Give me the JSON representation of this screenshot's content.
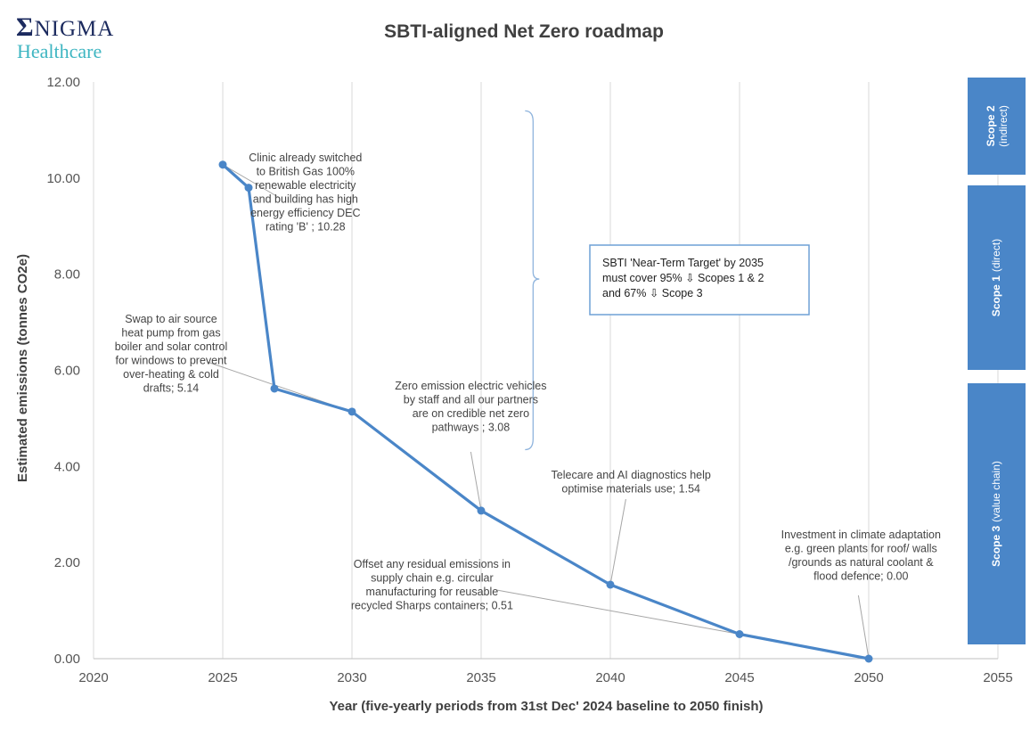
{
  "logo": {
    "line1_sigma": "Σ",
    "line1_rest": "NIGMA",
    "line2": "Healthcare"
  },
  "chart_data": {
    "type": "line",
    "title": "SBTI-aligned Net Zero roadmap",
    "xlabel": "Year (five-yearly periods from 31st Dec' 2024 baseline to 2050 finish)",
    "ylabel": "Estimated emissions (tonnes CO2e)",
    "xlim": [
      2020,
      2055
    ],
    "ylim": [
      0,
      12
    ],
    "x_ticks": [
      "2020",
      "2025",
      "2030",
      "2035",
      "2040",
      "2045",
      "2050",
      "2055"
    ],
    "y_ticks": [
      "0.00",
      "2.00",
      "4.00",
      "6.00",
      "8.00",
      "10.00",
      "12.00"
    ],
    "grid": "vertical",
    "line_color": "#4a86c8",
    "series": [
      {
        "x": [
          2025,
          2026,
          2027,
          2030,
          2035,
          2040,
          2045,
          2050
        ],
        "y": [
          10.28,
          9.8,
          5.62,
          5.14,
          3.08,
          1.54,
          0.51,
          0.0
        ]
      }
    ],
    "annotations": [
      {
        "lines": [
          "Clinic already switched",
          "to British Gas 100%",
          "renewable electricity",
          "and building has high",
          "energy efficiency DEC",
          "rating 'B' ; 10.28"
        ],
        "point": [
          2025,
          10.28
        ]
      },
      {
        "lines": [
          "Swap to air source",
          "heat pump from gas",
          "boiler and solar control",
          "for windows to prevent",
          "over-heating & cold",
          "drafts; 5.14"
        ],
        "point": [
          2030,
          5.14
        ]
      },
      {
        "lines": [
          "Zero emission electric vehicles",
          "by staff and all our partners",
          "are on credible net zero",
          "pathways ; 3.08"
        ],
        "point": [
          2035,
          3.08
        ]
      },
      {
        "lines": [
          "Telecare and AI diagnostics help",
          "optimise materials use; 1.54"
        ],
        "point": [
          2040,
          1.54
        ]
      },
      {
        "lines": [
          "Offset any residual emissions in",
          "supply chain e.g. circular",
          "manufacturing for reusable",
          "recycled Sharps containers; 0.51"
        ],
        "point": [
          2045,
          0.51
        ]
      },
      {
        "lines": [
          "Investment in climate adaptation",
          "e.g. green plants for roof/ walls",
          "/grounds as natural coolant &",
          "flood defence; 0.00"
        ],
        "point": [
          2050,
          0.0
        ]
      }
    ],
    "target_box": [
      "SBTI 'Near-Term Target' by 2035",
      "must cover 95% ⇩ Scopes 1 & 2",
      "and 67% ⇩ Scope 3"
    ],
    "scopes": [
      {
        "bold": "Scope 2",
        "rest": "(indirect)",
        "color": "#4a86c8"
      },
      {
        "bold": "Scope 1",
        "rest": "(direct)",
        "color": "#4a86c8"
      },
      {
        "bold": "Scope 3",
        "rest": "(value chain)",
        "color": "#4a86c8"
      }
    ]
  }
}
